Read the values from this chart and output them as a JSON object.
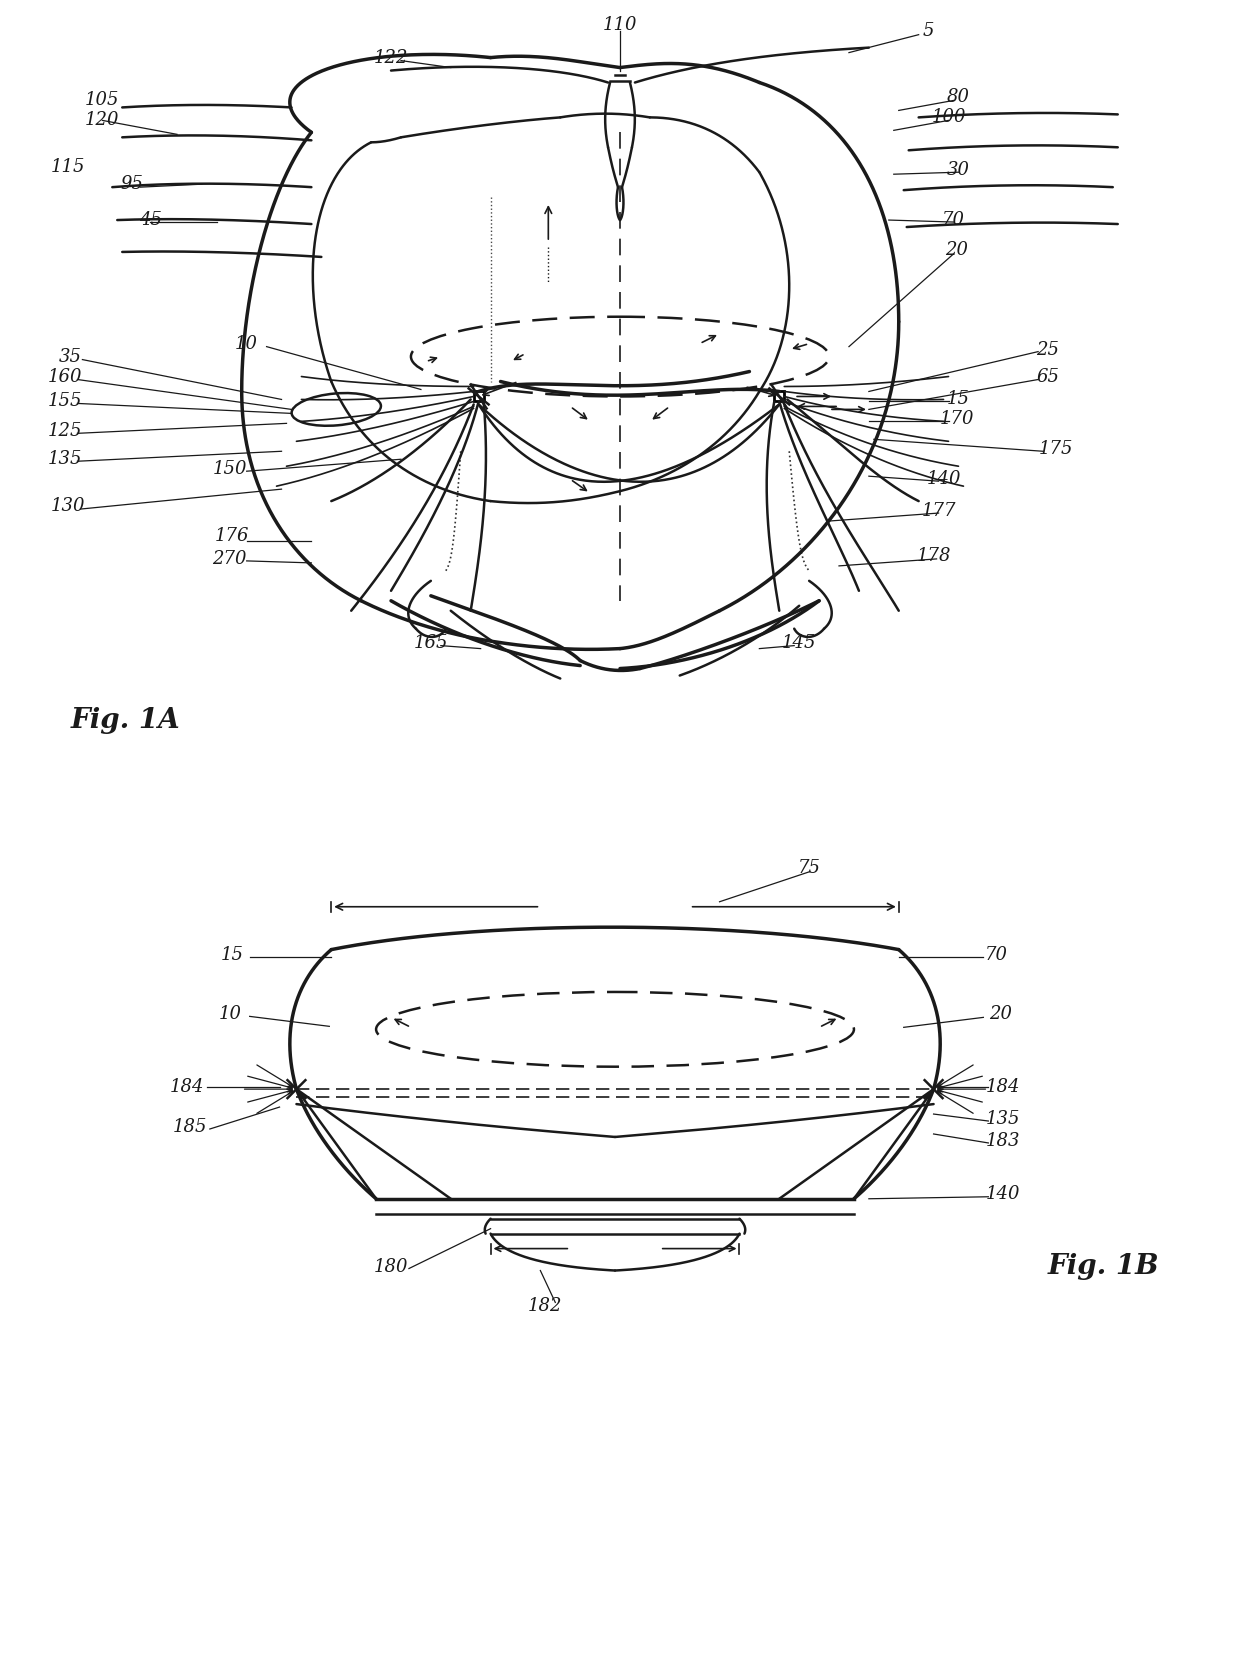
{
  "fig_width": 12.4,
  "fig_height": 16.6,
  "bg_color": "#ffffff",
  "line_color": "#1a1a1a",
  "fig1A_label": "Fig. 1A",
  "fig1B_label": "Fig. 1B"
}
